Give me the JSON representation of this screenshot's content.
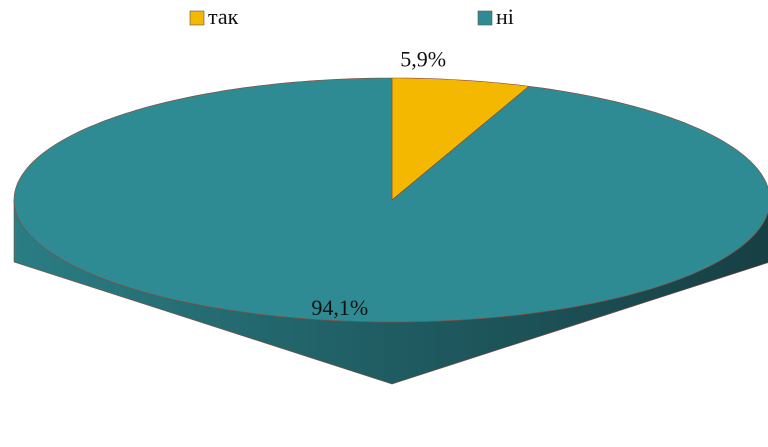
{
  "chart_data": {
    "type": "pie",
    "categories": [
      "так",
      "ні"
    ],
    "values": [
      5.9,
      94.1
    ],
    "value_labels": [
      "5,9%",
      "94,1%"
    ],
    "colors": [
      "#f5b800",
      "#2e8b93"
    ],
    "legend": "top"
  }
}
